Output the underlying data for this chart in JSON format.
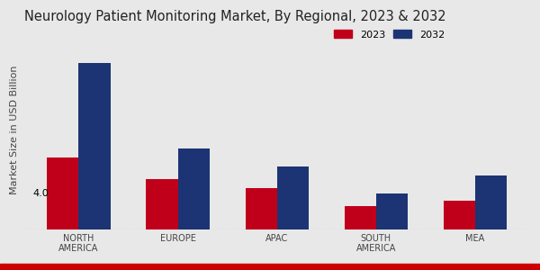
{
  "title": "Neurology Patient Monitoring Market, By Regional, 2023 & 2032",
  "ylabel": "Market Size in USD Billion",
  "categories": [
    "NORTH\nAMERICA",
    "EUROPE",
    "APAC",
    "SOUTH\nAMERICA",
    "MEA"
  ],
  "values_2023": [
    4.0,
    2.8,
    2.3,
    1.3,
    1.6
  ],
  "values_2032": [
    9.2,
    4.5,
    3.5,
    2.0,
    3.0
  ],
  "color_2023": "#c0001a",
  "color_2032": "#1c3473",
  "annotation_text": "4.0",
  "background_color": "#e8e8e8",
  "bar_width": 0.32,
  "legend_labels": [
    "2023",
    "2032"
  ],
  "title_fontsize": 10.5,
  "axis_label_fontsize": 8,
  "tick_fontsize": 7,
  "ylim": [
    0,
    11
  ],
  "red_bar_color": "#cc0000",
  "red_bar_height": 0.025
}
